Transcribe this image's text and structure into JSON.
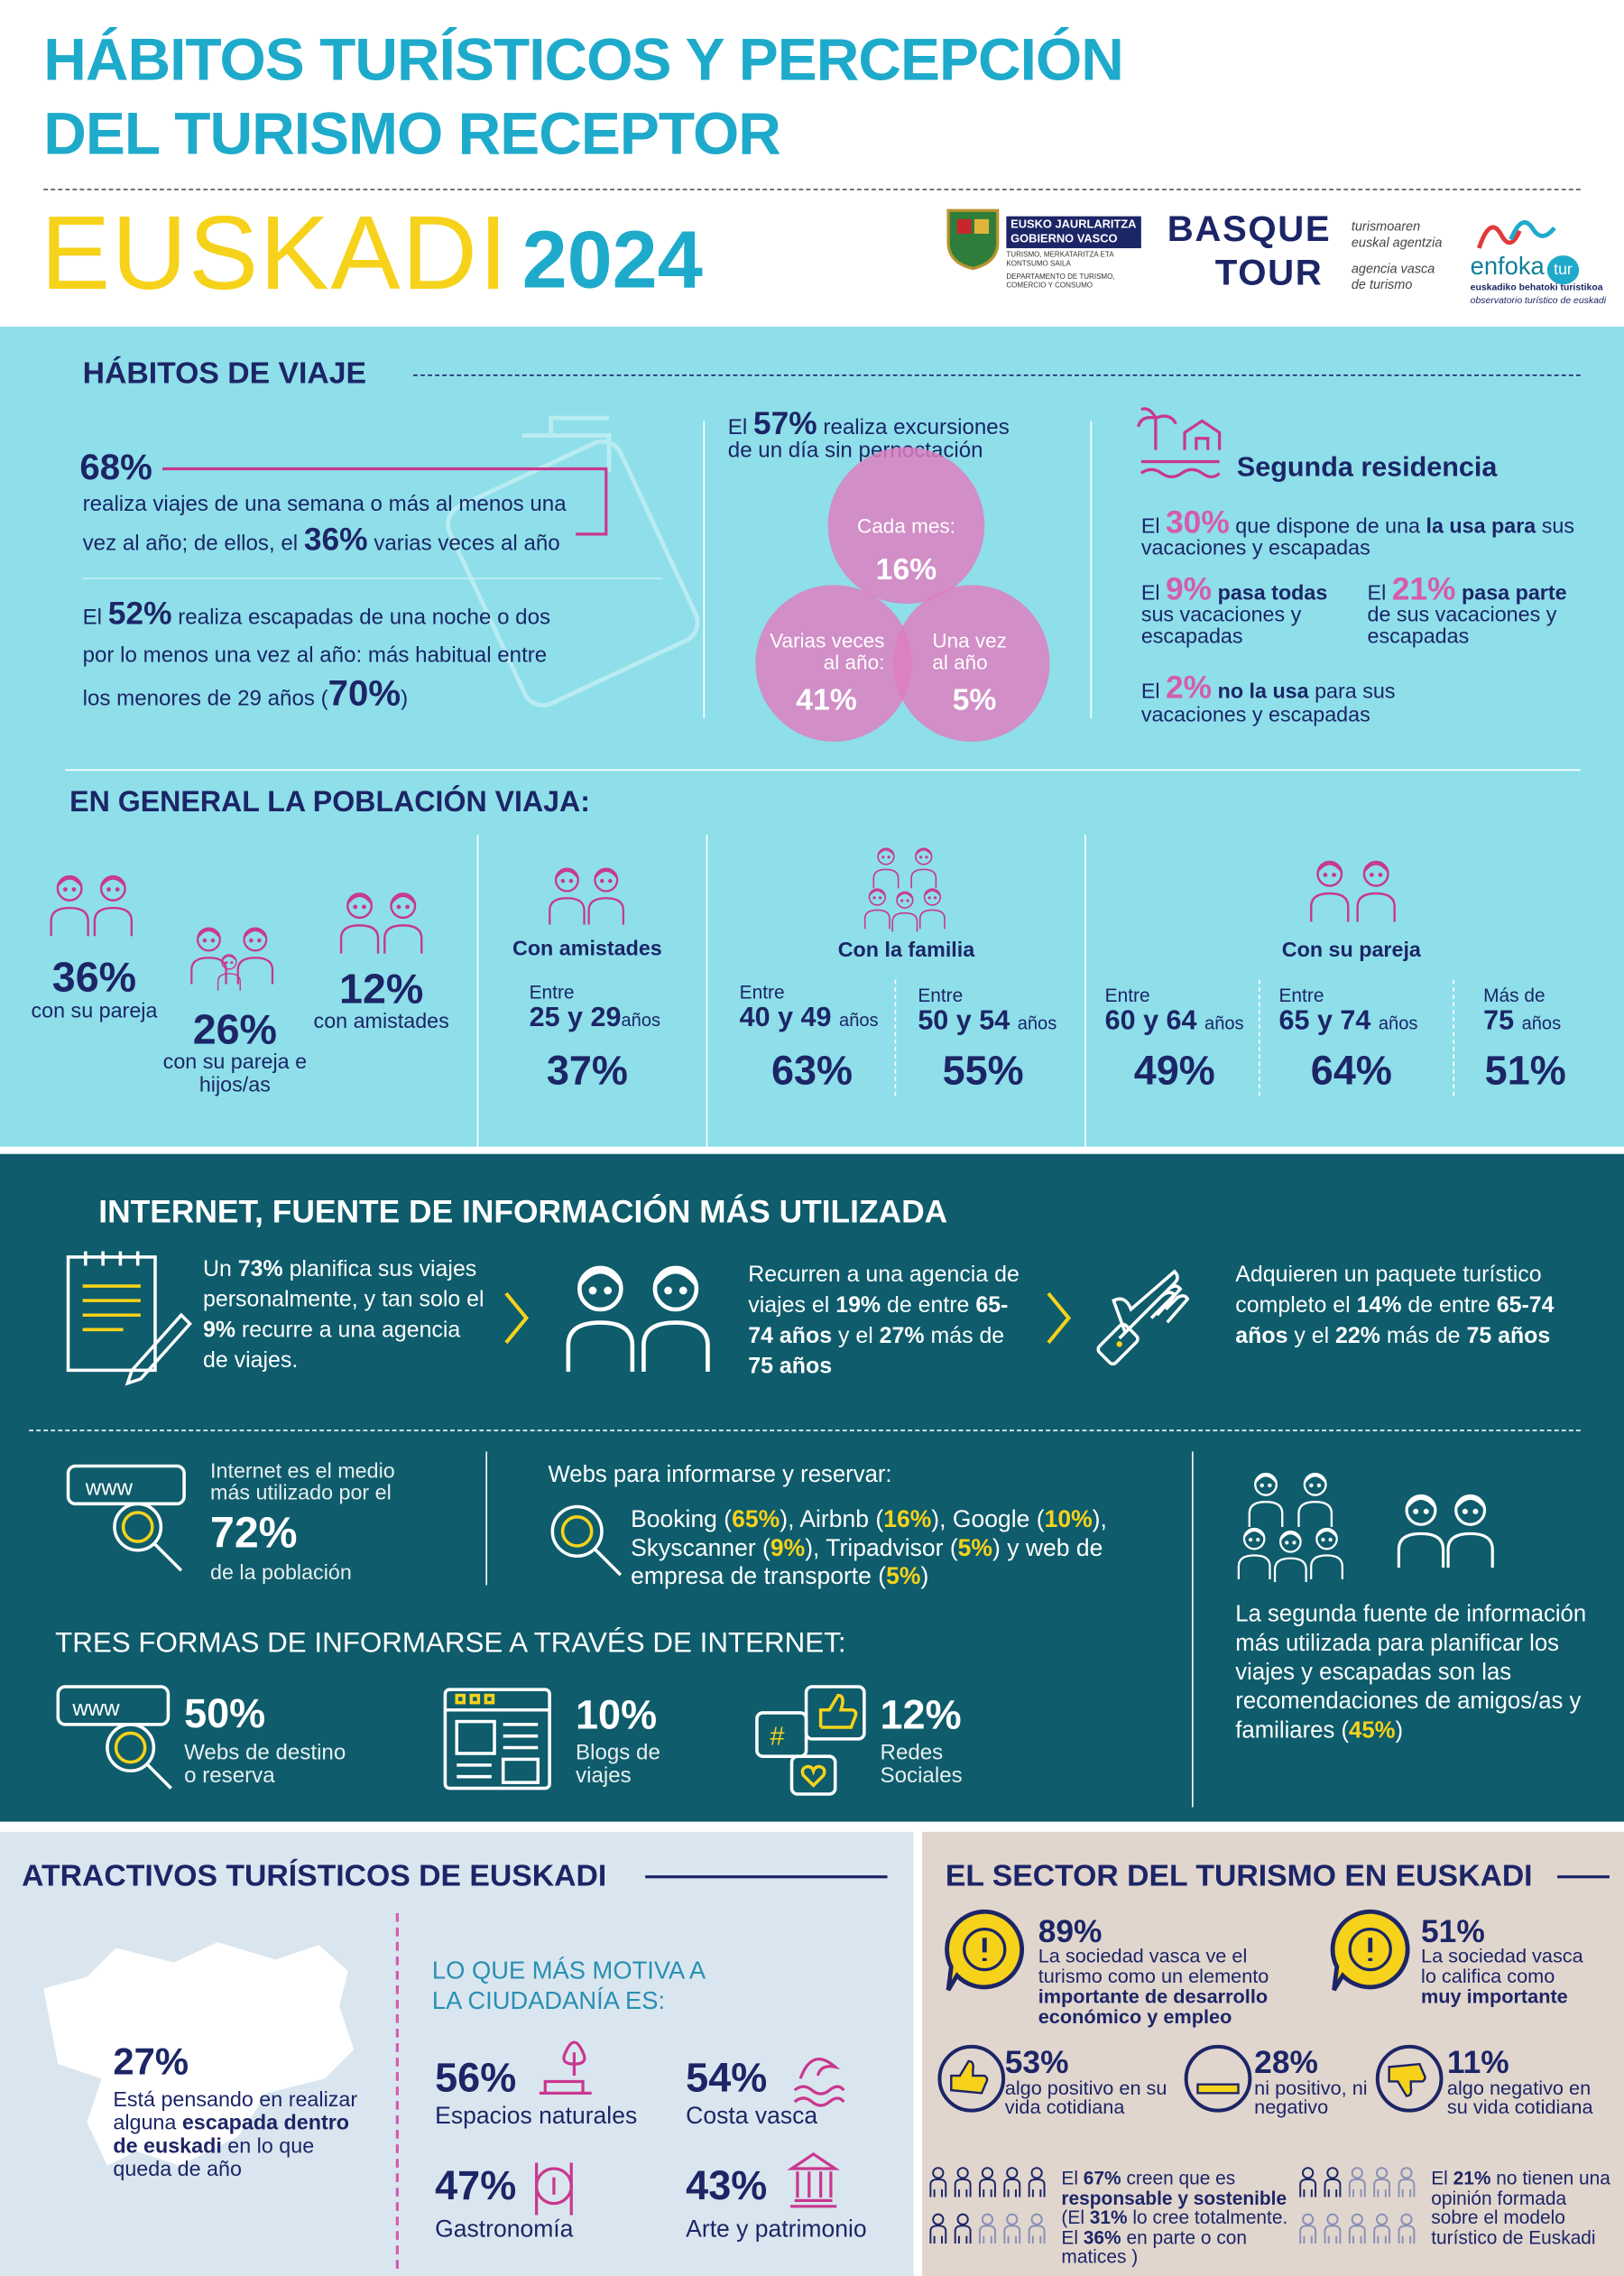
{
  "header": {
    "title_line1": "HÁBITOS TURÍSTICOS Y PERCEPCIÓN",
    "title_line2": "DEL TURISMO RECEPTOR",
    "region": "EUSKADI",
    "year": "2024",
    "logo_gv": [
      "EUSKO JAURLARITZA",
      "GOBIERNO VASCO",
      "TURISMO, MERKATARITZA ETA KONTSUMO SAILA",
      "DEPARTAMENTO DE TURISMO, COMERCIO Y CONSUMO"
    ],
    "logo_bt": [
      "BASQUE",
      "TOUR",
      "turismoaren euskal agentzia",
      "agencia vasca de turismo"
    ],
    "logo_enfoka": [
      "enfoka",
      "tur",
      "euskadiko behatoki turistikoa",
      "observatorio turístico de euskadi"
    ]
  },
  "habitos": {
    "title": "HÁBITOS DE VIAJE",
    "item1": {
      "value": "68%",
      "text": [
        "realiza viajes de una semana o más al menos una vez al año; de ellos, el ",
        "36%",
        " varias veces al año"
      ]
    },
    "item2": [
      "El ",
      "52%",
      " realiza escapadas de una noche o dos por lo menos una vez al año: más habitual entre los menores de 29 años (",
      "70%",
      ")"
    ],
    "excursiones": [
      "El ",
      "57%",
      " realiza excursiones de un día sin pernoctación"
    ],
    "venn": [
      {
        "label": [
          "Cada mes:"
        ],
        "value": "16%"
      },
      {
        "label": [
          "Varias veces",
          "al año:"
        ],
        "value": "41%"
      },
      {
        "label": [
          "Una vez",
          "al año"
        ],
        "value": "5%"
      }
    ],
    "segunda": {
      "title": "Segunda residencia",
      "a": [
        "El ",
        "30%",
        " que dispone de una ",
        "la usa para",
        " sus vacaciones y escapadas"
      ],
      "b": [
        "El ",
        "9%",
        " pasa todas",
        " sus vacaciones y escapadas"
      ],
      "c": [
        "El ",
        "21%",
        " pasa parte",
        " de sus vacaciones y escapadas"
      ],
      "d": [
        "El ",
        "2%",
        " no la usa",
        " para sus vacaciones y escapadas"
      ]
    }
  },
  "poblacion": {
    "title": "EN GENERAL LA POBLACIÓN VIAJA:",
    "summary": [
      {
        "value": "36%",
        "label": "con su pareja"
      },
      {
        "value": "26%",
        "label": "con su pareja e hijos/as"
      },
      {
        "value": "12%",
        "label": "con amistades"
      }
    ],
    "groups": [
      {
        "title": "Con amistades",
        "ages": [
          {
            "top": "Entre",
            "range": "25 y 29",
            "unit": "años",
            "value": "37%"
          }
        ]
      },
      {
        "title": "Con la familia",
        "ages": [
          {
            "top": "Entre",
            "range": "40 y 49",
            "unit": "años",
            "value": "63%"
          },
          {
            "top": "Entre",
            "range": "50 y 54",
            "unit": "años",
            "value": "55%"
          }
        ]
      },
      {
        "title": "Con su pareja",
        "ages": [
          {
            "top": "Entre",
            "range": "60 y 64",
            "unit": "años",
            "value": "49%"
          },
          {
            "top": "Entre",
            "range": "65 y 74",
            "unit": "años",
            "value": "64%"
          },
          {
            "top": "Más de",
            "range": "75",
            "unit": "años",
            "value": "51%"
          }
        ]
      }
    ]
  },
  "internet": {
    "title": "INTERNET, FUENTE DE INFORMACIÓN MÁS UTILIZADA",
    "p1": [
      "Un ",
      "73%",
      " planifica sus viajes personalmente, y tan solo el ",
      "9%",
      " recurre a una agencia de viajes."
    ],
    "p2": [
      "Recurren a una agencia de viajes el ",
      "19%",
      " de entre ",
      "65-74 años",
      " y el ",
      "27%",
      " más de ",
      "75 años"
    ],
    "p3": [
      "Adquieren un paquete turístico completo el ",
      "14%",
      " de entre ",
      "65-74 años",
      " y el ",
      "22%",
      " más de ",
      "75 años"
    ],
    "medio": {
      "pre": [
        "Internet es el medio",
        "más utilizado por el"
      ],
      "value": "72%",
      "post": "de la población"
    },
    "webs": {
      "title": "Webs para informarse y reservar:",
      "text": [
        "Booking (",
        "65%",
        "), Airbnb (",
        "16%",
        "), Google (",
        "10%",
        "), Skyscanner (",
        "9%",
        "), Tripadvisor (",
        "5%",
        ") y web de empresa de transporte (",
        "5%",
        ")"
      ]
    },
    "formas_title": "TRES FORMAS DE INFORMARSE A TRAVÉS DE INTERNET:",
    "formas": [
      {
        "value": "50%",
        "label": [
          "Webs de destino",
          "o reserva"
        ]
      },
      {
        "value": "10%",
        "label": [
          "Blogs de",
          "viajes"
        ]
      },
      {
        "value": "12%",
        "label": [
          "Redes",
          "Sociales"
        ]
      }
    ],
    "segunda_fuente": [
      "La segunda fuente de información más utilizada para planificar los viajes y escapadas son las recomendaciones de amigos/as y familiares  (",
      "45%",
      ")"
    ]
  },
  "atractivos": {
    "title": "ATRACTIVOS TURÍSTICOS DE EUSKADI",
    "value": "27%",
    "text": [
      "Está pensando en realizar alguna ",
      "escapada dentro de euskadi",
      " en lo que queda de año"
    ],
    "motiva": [
      "LO QUE MÁS MOTIVA A",
      "LA CIUDADANÍA ES:"
    ],
    "items": [
      {
        "value": "56%",
        "label": "Espacios naturales"
      },
      {
        "value": "54%",
        "label": "Costa vasca"
      },
      {
        "value": "47%",
        "label": "Gastronomía"
      },
      {
        "value": "43%",
        "label": "Arte y patrimonio"
      }
    ]
  },
  "sector": {
    "title": "EL SECTOR DEL TURISMO EN EUSKADI",
    "s1": {
      "value": "89%",
      "text": [
        "La sociedad vasca ve el turismo como un elemento ",
        "importante de desarrollo económico y empleo"
      ]
    },
    "s2": {
      "value": "51%",
      "text": [
        "La sociedad vasca lo califica como ",
        "muy importante"
      ]
    },
    "row": [
      {
        "value": "53%",
        "label": "algo positivo en su vida cotidiana"
      },
      {
        "value": "28%",
        "label": "ni positivo, ni negativo"
      },
      {
        "value": "11%",
        "label": "algo negativo en su vida cotidiana"
      }
    ],
    "p1": [
      "El ",
      "67%",
      " creen que es ",
      "responsable y sostenible",
      " (El ",
      "31%",
      " lo cree totalmente. El ",
      "36%",
      " en parte o con matices )"
    ],
    "p2": [
      "El ",
      "21%",
      " no tienen una opinión formada sobre el modelo turístico de Euskadi"
    ]
  }
}
